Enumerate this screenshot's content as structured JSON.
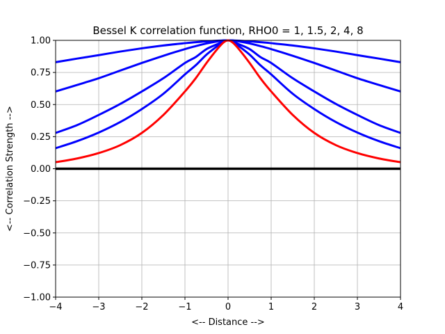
{
  "chart_data": {
    "type": "line",
    "title": "Bessel K correlation function, RHO0 = 1, 1.5, 2, 4, 8",
    "xlabel": "<-- Distance -->",
    "ylabel": "<-- Correlation Strength -->",
    "xlim": [
      -4,
      4
    ],
    "ylim": [
      -1,
      1
    ],
    "xticks": [
      -4,
      -3,
      -2,
      -1,
      0,
      1,
      2,
      3,
      4
    ],
    "yticks": [
      -1.0,
      -0.75,
      -0.5,
      -0.25,
      0.0,
      0.25,
      0.5,
      0.75,
      1.0
    ],
    "xtick_labels": [
      "−4",
      "−3",
      "−2",
      "−1",
      "0",
      "1",
      "2",
      "3",
      "4"
    ],
    "ytick_labels": [
      "−1.00",
      "−0.75",
      "−0.50",
      "−0.25",
      "0.00",
      "0.25",
      "0.50",
      "0.75",
      "1.00"
    ],
    "grid": true,
    "x": [
      -4,
      -3.5,
      -3,
      -2.5,
      -2,
      -1.5,
      -1,
      -0.75,
      -0.5,
      -0.25,
      -0.1,
      0,
      0.1,
      0.25,
      0.5,
      0.75,
      1,
      1.5,
      2,
      2.5,
      3,
      3.5,
      4
    ],
    "series": [
      {
        "rho0": 1,
        "color": "#ff0000",
        "values": [
          0.051,
          0.08,
          0.122,
          0.184,
          0.279,
          0.419,
          0.602,
          0.705,
          0.824,
          0.932,
          0.985,
          1.0,
          0.985,
          0.932,
          0.824,
          0.705,
          0.602,
          0.419,
          0.279,
          0.184,
          0.122,
          0.08,
          0.051
        ]
      },
      {
        "rho0": 1.5,
        "color": "#0000ff",
        "values": [
          0.16,
          0.215,
          0.282,
          0.364,
          0.465,
          0.584,
          0.735,
          0.806,
          0.889,
          0.955,
          0.992,
          1.0,
          0.992,
          0.955,
          0.889,
          0.806,
          0.735,
          0.584,
          0.465,
          0.364,
          0.282,
          0.215,
          0.16
        ]
      },
      {
        "rho0": 2,
        "color": "#0000ff",
        "values": [
          0.279,
          0.34,
          0.419,
          0.505,
          0.602,
          0.705,
          0.824,
          0.87,
          0.932,
          0.97,
          0.995,
          1.0,
          0.995,
          0.97,
          0.932,
          0.87,
          0.824,
          0.705,
          0.602,
          0.505,
          0.419,
          0.34,
          0.279
        ]
      },
      {
        "rho0": 4,
        "color": "#0000ff",
        "values": [
          0.602,
          0.653,
          0.705,
          0.765,
          0.824,
          0.88,
          0.932,
          0.955,
          0.976,
          0.992,
          0.999,
          1.0,
          0.999,
          0.992,
          0.976,
          0.955,
          0.932,
          0.88,
          0.824,
          0.765,
          0.705,
          0.653,
          0.602
        ]
      },
      {
        "rho0": 8,
        "color": "#0000ff",
        "values": [
          0.83,
          0.858,
          0.885,
          0.913,
          0.938,
          0.96,
          0.978,
          0.986,
          0.992,
          0.997,
          0.999,
          1.0,
          0.999,
          0.997,
          0.992,
          0.986,
          0.978,
          0.96,
          0.938,
          0.913,
          0.885,
          0.858,
          0.83
        ]
      },
      {
        "rho0": 0,
        "color": "#000000",
        "values": [
          0,
          0,
          0,
          0,
          0,
          0,
          0,
          0,
          0,
          0,
          0,
          0,
          0,
          0,
          0,
          0,
          0,
          0,
          0,
          0,
          0,
          0,
          0
        ]
      }
    ]
  }
}
